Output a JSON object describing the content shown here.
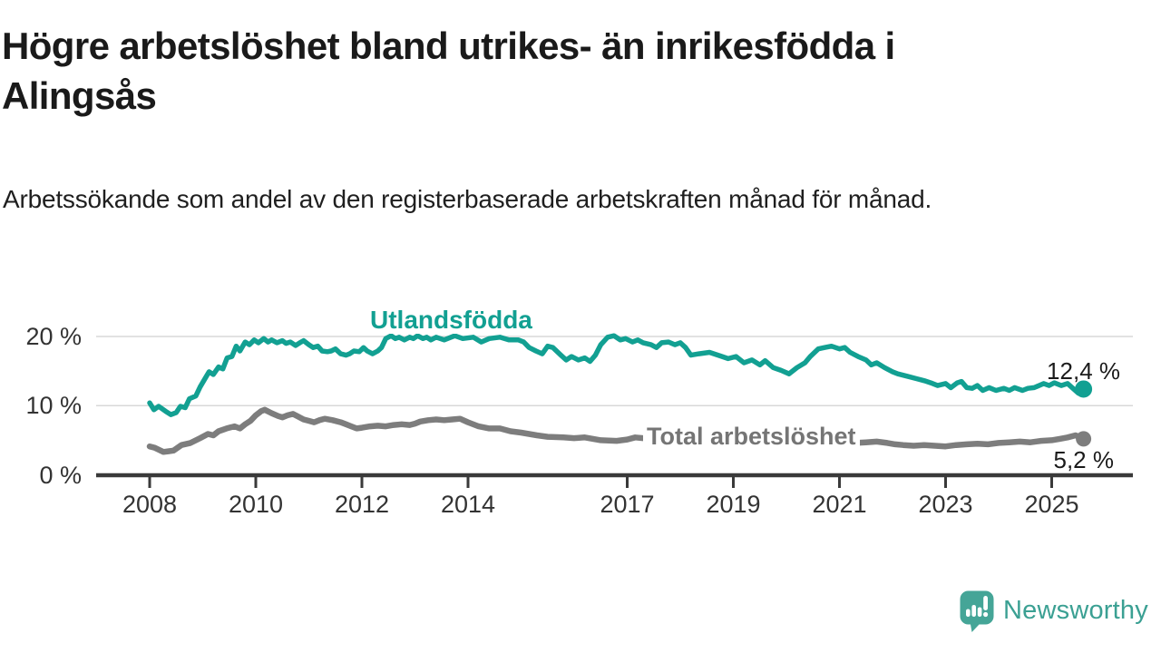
{
  "chart_data": {
    "type": "line",
    "title": "Högre arbetslöshet bland utrikes- än inrikesfödda i Alingsås",
    "subtitle": "Arbetssökande som andel av den registerbaserade arbetskraften månad för månad.",
    "x_unit": "decimal year (monthly observations)",
    "xlim": [
      2007.3,
      2026.2
    ],
    "ylim": [
      0,
      22
    ],
    "xticks": [
      2008,
      2010,
      2012,
      2014,
      2017,
      2019,
      2021,
      2023,
      2025
    ],
    "yticks": [
      0,
      10,
      20
    ],
    "ytick_labels": [
      "0 %",
      "10 %",
      "20 %"
    ],
    "grid": "horizontal gridlines at 10 % and 20 %, dark baseline at 0 %",
    "legend": "inline labels attached to lines, end-point dots with value labels",
    "series": [
      {
        "name": "Utlandsfödda",
        "color": "#12a092",
        "end_label": "12,4 %",
        "end_value": 12.4,
        "points": [
          [
            2008.0,
            10.4
          ],
          [
            2008.08,
            9.4
          ],
          [
            2008.17,
            9.9
          ],
          [
            2008.3,
            9.2
          ],
          [
            2008.4,
            8.7
          ],
          [
            2008.5,
            9.0
          ],
          [
            2008.58,
            9.9
          ],
          [
            2008.67,
            9.7
          ],
          [
            2008.75,
            11.0
          ],
          [
            2008.87,
            11.4
          ],
          [
            2008.95,
            12.7
          ],
          [
            2009.05,
            14.0
          ],
          [
            2009.12,
            14.9
          ],
          [
            2009.2,
            14.5
          ],
          [
            2009.3,
            15.6
          ],
          [
            2009.38,
            15.3
          ],
          [
            2009.46,
            16.9
          ],
          [
            2009.55,
            17.1
          ],
          [
            2009.63,
            18.6
          ],
          [
            2009.7,
            17.9
          ],
          [
            2009.8,
            19.2
          ],
          [
            2009.88,
            18.8
          ],
          [
            2009.97,
            19.5
          ],
          [
            2010.05,
            19.1
          ],
          [
            2010.15,
            19.7
          ],
          [
            2010.23,
            19.2
          ],
          [
            2010.3,
            19.5
          ],
          [
            2010.4,
            19.1
          ],
          [
            2010.5,
            19.4
          ],
          [
            2010.57,
            19.0
          ],
          [
            2010.65,
            19.2
          ],
          [
            2010.75,
            18.7
          ],
          [
            2010.83,
            19.1
          ],
          [
            2010.9,
            19.4
          ],
          [
            2011.0,
            18.8
          ],
          [
            2011.08,
            18.4
          ],
          [
            2011.17,
            18.6
          ],
          [
            2011.25,
            17.9
          ],
          [
            2011.35,
            17.8
          ],
          [
            2011.42,
            17.9
          ],
          [
            2011.5,
            18.2
          ],
          [
            2011.6,
            17.5
          ],
          [
            2011.7,
            17.3
          ],
          [
            2011.77,
            17.5
          ],
          [
            2011.85,
            17.9
          ],
          [
            2011.95,
            17.8
          ],
          [
            2012.03,
            18.4
          ],
          [
            2012.1,
            17.9
          ],
          [
            2012.2,
            17.5
          ],
          [
            2012.3,
            17.9
          ],
          [
            2012.37,
            18.4
          ],
          [
            2012.45,
            19.7
          ],
          [
            2012.55,
            20.1
          ],
          [
            2012.63,
            19.7
          ],
          [
            2012.7,
            19.9
          ],
          [
            2012.8,
            19.5
          ],
          [
            2012.9,
            19.9
          ],
          [
            2012.97,
            19.7
          ],
          [
            2013.05,
            20.1
          ],
          [
            2013.15,
            19.7
          ],
          [
            2013.22,
            19.9
          ],
          [
            2013.3,
            19.5
          ],
          [
            2013.4,
            19.9
          ],
          [
            2013.55,
            19.5
          ],
          [
            2013.75,
            20.1
          ],
          [
            2013.9,
            19.7
          ],
          [
            2014.1,
            19.9
          ],
          [
            2014.25,
            19.2
          ],
          [
            2014.4,
            19.7
          ],
          [
            2014.6,
            19.9
          ],
          [
            2014.77,
            19.5
          ],
          [
            2014.95,
            19.5
          ],
          [
            2015.05,
            19.2
          ],
          [
            2015.15,
            18.4
          ],
          [
            2015.28,
            17.9
          ],
          [
            2015.4,
            17.5
          ],
          [
            2015.5,
            18.6
          ],
          [
            2015.6,
            18.4
          ],
          [
            2015.75,
            17.3
          ],
          [
            2015.85,
            16.6
          ],
          [
            2015.95,
            17.1
          ],
          [
            2016.08,
            16.6
          ],
          [
            2016.2,
            16.9
          ],
          [
            2016.3,
            16.4
          ],
          [
            2016.4,
            17.3
          ],
          [
            2016.5,
            18.8
          ],
          [
            2016.63,
            19.9
          ],
          [
            2016.75,
            20.1
          ],
          [
            2016.87,
            19.5
          ],
          [
            2016.97,
            19.7
          ],
          [
            2017.1,
            19.2
          ],
          [
            2017.2,
            19.5
          ],
          [
            2017.3,
            19.1
          ],
          [
            2017.45,
            18.8
          ],
          [
            2017.55,
            18.4
          ],
          [
            2017.65,
            19.1
          ],
          [
            2017.78,
            19.2
          ],
          [
            2017.9,
            18.8
          ],
          [
            2018.0,
            19.1
          ],
          [
            2018.1,
            18.4
          ],
          [
            2018.2,
            17.3
          ],
          [
            2018.35,
            17.5
          ],
          [
            2018.55,
            17.7
          ],
          [
            2018.75,
            17.2
          ],
          [
            2018.9,
            16.8
          ],
          [
            2019.05,
            17.1
          ],
          [
            2019.2,
            16.2
          ],
          [
            2019.35,
            16.6
          ],
          [
            2019.5,
            15.9
          ],
          [
            2019.6,
            16.5
          ],
          [
            2019.75,
            15.5
          ],
          [
            2019.9,
            15.1
          ],
          [
            2020.05,
            14.6
          ],
          [
            2020.2,
            15.5
          ],
          [
            2020.35,
            16.2
          ],
          [
            2020.45,
            17.1
          ],
          [
            2020.6,
            18.2
          ],
          [
            2020.72,
            18.4
          ],
          [
            2020.85,
            18.6
          ],
          [
            2021.0,
            18.2
          ],
          [
            2021.1,
            18.4
          ],
          [
            2021.2,
            17.7
          ],
          [
            2021.35,
            17.1
          ],
          [
            2021.5,
            16.6
          ],
          [
            2021.6,
            15.9
          ],
          [
            2021.7,
            16.2
          ],
          [
            2021.85,
            15.5
          ],
          [
            2022.0,
            14.9
          ],
          [
            2022.1,
            14.6
          ],
          [
            2022.3,
            14.2
          ],
          [
            2022.45,
            13.9
          ],
          [
            2022.6,
            13.6
          ],
          [
            2022.72,
            13.3
          ],
          [
            2022.85,
            12.9
          ],
          [
            2023.0,
            13.2
          ],
          [
            2023.1,
            12.6
          ],
          [
            2023.22,
            13.3
          ],
          [
            2023.3,
            13.5
          ],
          [
            2023.4,
            12.6
          ],
          [
            2023.5,
            12.5
          ],
          [
            2023.6,
            12.9
          ],
          [
            2023.7,
            12.2
          ],
          [
            2023.82,
            12.6
          ],
          [
            2023.95,
            12.2
          ],
          [
            2024.1,
            12.5
          ],
          [
            2024.2,
            12.2
          ],
          [
            2024.3,
            12.6
          ],
          [
            2024.45,
            12.2
          ],
          [
            2024.55,
            12.5
          ],
          [
            2024.67,
            12.6
          ],
          [
            2024.85,
            13.2
          ],
          [
            2024.95,
            12.9
          ],
          [
            2025.05,
            13.3
          ],
          [
            2025.18,
            12.9
          ],
          [
            2025.3,
            13.2
          ],
          [
            2025.4,
            12.5
          ],
          [
            2025.5,
            11.8
          ],
          [
            2025.6,
            12.4
          ]
        ]
      },
      {
        "name": "Total arbetslöshet",
        "color": "#7d7d7d",
        "end_label": "5,2 %",
        "end_value": 5.2,
        "points": [
          [
            2008.0,
            4.1
          ],
          [
            2008.1,
            3.9
          ],
          [
            2008.26,
            3.3
          ],
          [
            2008.35,
            3.4
          ],
          [
            2008.45,
            3.5
          ],
          [
            2008.6,
            4.3
          ],
          [
            2008.77,
            4.6
          ],
          [
            2008.95,
            5.3
          ],
          [
            2009.1,
            5.9
          ],
          [
            2009.2,
            5.7
          ],
          [
            2009.3,
            6.3
          ],
          [
            2009.45,
            6.7
          ],
          [
            2009.6,
            7.0
          ],
          [
            2009.7,
            6.7
          ],
          [
            2009.8,
            7.3
          ],
          [
            2009.9,
            7.8
          ],
          [
            2010.0,
            8.6
          ],
          [
            2010.1,
            9.2
          ],
          [
            2010.17,
            9.4
          ],
          [
            2010.3,
            8.9
          ],
          [
            2010.42,
            8.5
          ],
          [
            2010.5,
            8.3
          ],
          [
            2010.6,
            8.6
          ],
          [
            2010.7,
            8.8
          ],
          [
            2010.8,
            8.4
          ],
          [
            2010.9,
            8.0
          ],
          [
            2011.0,
            7.8
          ],
          [
            2011.1,
            7.6
          ],
          [
            2011.2,
            7.9
          ],
          [
            2011.3,
            8.1
          ],
          [
            2011.45,
            7.9
          ],
          [
            2011.6,
            7.6
          ],
          [
            2011.7,
            7.3
          ],
          [
            2011.8,
            7.0
          ],
          [
            2011.9,
            6.7
          ],
          [
            2012.0,
            6.8
          ],
          [
            2012.15,
            7.0
          ],
          [
            2012.3,
            7.1
          ],
          [
            2012.45,
            7.0
          ],
          [
            2012.6,
            7.2
          ],
          [
            2012.75,
            7.3
          ],
          [
            2012.9,
            7.2
          ],
          [
            2013.0,
            7.4
          ],
          [
            2013.1,
            7.7
          ],
          [
            2013.25,
            7.9
          ],
          [
            2013.4,
            8.0
          ],
          [
            2013.55,
            7.9
          ],
          [
            2013.7,
            8.0
          ],
          [
            2013.85,
            8.1
          ],
          [
            2014.0,
            7.6
          ],
          [
            2014.2,
            7.0
          ],
          [
            2014.4,
            6.7
          ],
          [
            2014.6,
            6.7
          ],
          [
            2014.8,
            6.3
          ],
          [
            2015.0,
            6.1
          ],
          [
            2015.3,
            5.7
          ],
          [
            2015.5,
            5.5
          ],
          [
            2015.8,
            5.4
          ],
          [
            2016.0,
            5.3
          ],
          [
            2016.2,
            5.4
          ],
          [
            2016.5,
            5.0
          ],
          [
            2016.8,
            4.9
          ],
          [
            2017.0,
            5.1
          ],
          [
            2017.15,
            5.4
          ],
          [
            2017.3,
            5.3
          ],
          [
            2017.5,
            5.2
          ],
          [
            2017.7,
            5.0
          ],
          [
            2018.0,
            4.9
          ],
          [
            2018.3,
            4.8
          ],
          [
            2018.6,
            4.9
          ],
          [
            2019.0,
            4.7
          ],
          [
            2019.3,
            4.6
          ],
          [
            2019.6,
            4.5
          ],
          [
            2019.9,
            4.6
          ],
          [
            2020.2,
            5.2
          ],
          [
            2020.5,
            5.6
          ],
          [
            2020.8,
            5.4
          ],
          [
            2021.0,
            5.0
          ],
          [
            2021.15,
            4.7
          ],
          [
            2021.3,
            4.6
          ],
          [
            2021.5,
            4.7
          ],
          [
            2021.7,
            4.8
          ],
          [
            2021.9,
            4.6
          ],
          [
            2022.05,
            4.4
          ],
          [
            2022.2,
            4.3
          ],
          [
            2022.4,
            4.2
          ],
          [
            2022.6,
            4.3
          ],
          [
            2022.8,
            4.2
          ],
          [
            2023.0,
            4.1
          ],
          [
            2023.2,
            4.3
          ],
          [
            2023.4,
            4.4
          ],
          [
            2023.6,
            4.5
          ],
          [
            2023.8,
            4.4
          ],
          [
            2024.0,
            4.6
          ],
          [
            2024.2,
            4.7
          ],
          [
            2024.4,
            4.8
          ],
          [
            2024.6,
            4.7
          ],
          [
            2024.8,
            4.9
          ],
          [
            2025.0,
            5.0
          ],
          [
            2025.15,
            5.2
          ],
          [
            2025.3,
            5.4
          ],
          [
            2025.45,
            5.7
          ],
          [
            2025.6,
            5.2
          ]
        ]
      }
    ]
  },
  "footer": {
    "logo_text": "Newsworthy",
    "logo_color": "#3ba093"
  }
}
